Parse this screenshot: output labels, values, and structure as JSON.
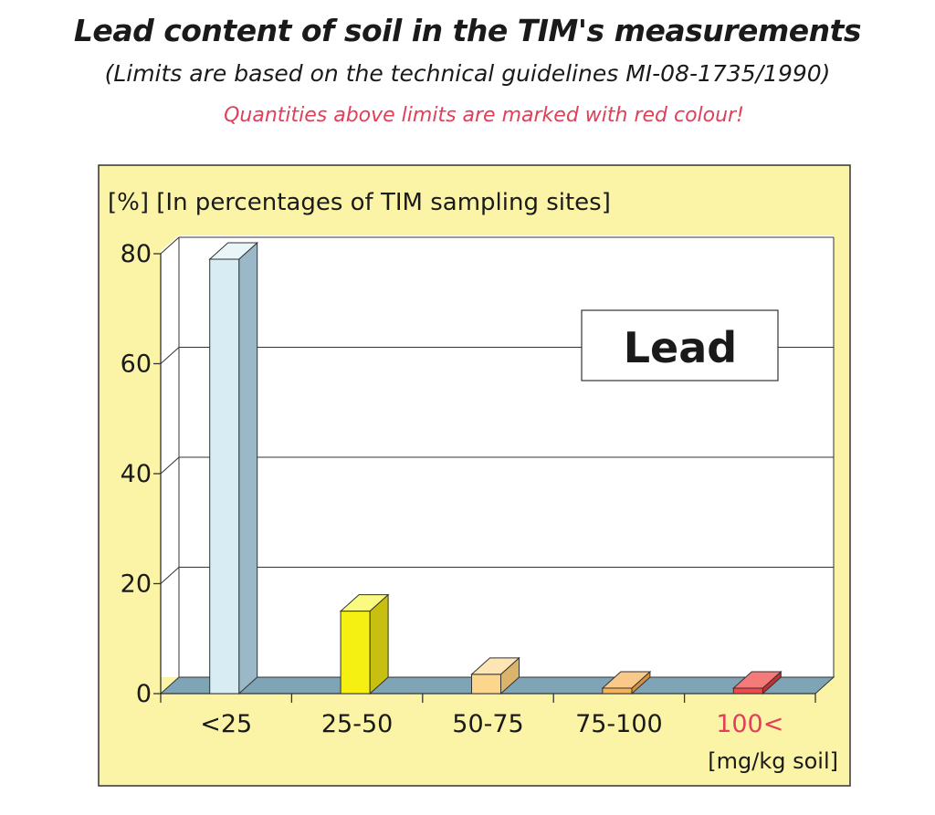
{
  "header": {
    "title": "Lead content of soil in the TIM's measurements",
    "subtitle": "(Limits are based on the technical guidelines MI-08-1735/1990)",
    "note": "Quantities above limits are marked with red colour!"
  },
  "colors": {
    "panel_bg": "#fbf4a6",
    "plot_bg": "#ffffff",
    "floor": "#7fa4b6",
    "note_red": "#e0405a"
  },
  "chart_data": {
    "type": "bar",
    "ylabel": "[%] [In percentages of TIM sampling sites]",
    "xlabel": "[mg/kg soil]",
    "legend_box": "Lead",
    "categories": [
      "<25",
      "25-50",
      "50-75",
      "75-100",
      "100<"
    ],
    "category_label_colors": [
      "#1a1a1a",
      "#1a1a1a",
      "#1a1a1a",
      "#1a1a1a",
      "#e0405a"
    ],
    "ylim": [
      0,
      80
    ],
    "yticks": [
      0,
      20,
      40,
      60,
      80
    ],
    "grid": true,
    "series": [
      {
        "values": [
          79,
          15,
          3.5,
          1,
          1
        ],
        "colors": [
          "#d8ecf4",
          "#f5ef12",
          "#fbd68c",
          "#f6b259",
          "#ef4a4a"
        ],
        "side_colors": [
          "#9ab8c8",
          "#c8c010",
          "#d9b46a",
          "#d6913d",
          "#c23030"
        ],
        "top_colors": [
          "#eaf5fa",
          "#fafa80",
          "#fde6b4",
          "#f9c98a",
          "#f57a7a"
        ]
      }
    ]
  }
}
